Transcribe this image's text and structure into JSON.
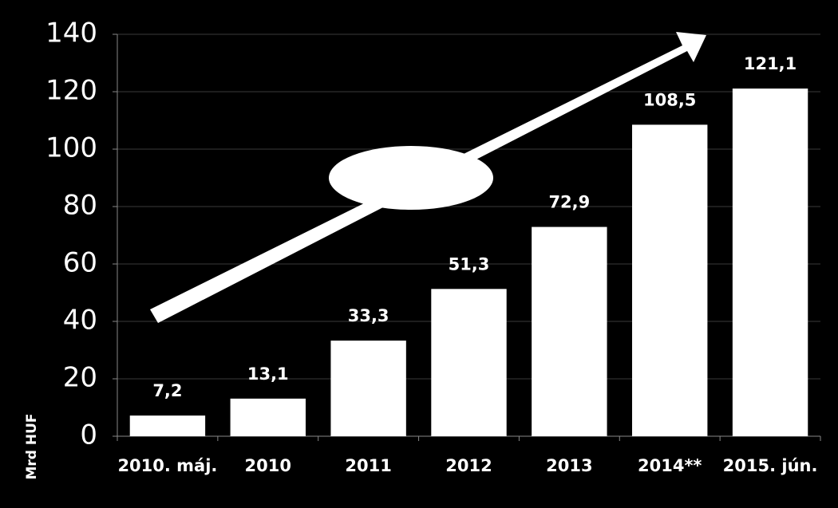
{
  "chart_data": {
    "type": "bar",
    "y_label": "Mrd HUF",
    "categories": [
      "2010. máj.",
      "2010",
      "2011",
      "2012",
      "2013",
      "2014**",
      "2015. jún."
    ],
    "values": [
      7.2,
      13.1,
      33.3,
      51.3,
      72.9,
      108.5,
      121.1
    ],
    "value_labels": [
      "7,2",
      "13,1",
      "33,3",
      "51,3",
      "72,9",
      "108,5",
      "121,1"
    ],
    "color": "#ffffff",
    "ylim": [
      0,
      140
    ],
    "yticks": [
      0,
      20,
      40,
      60,
      80,
      100,
      120,
      140
    ],
    "grid": true
  }
}
